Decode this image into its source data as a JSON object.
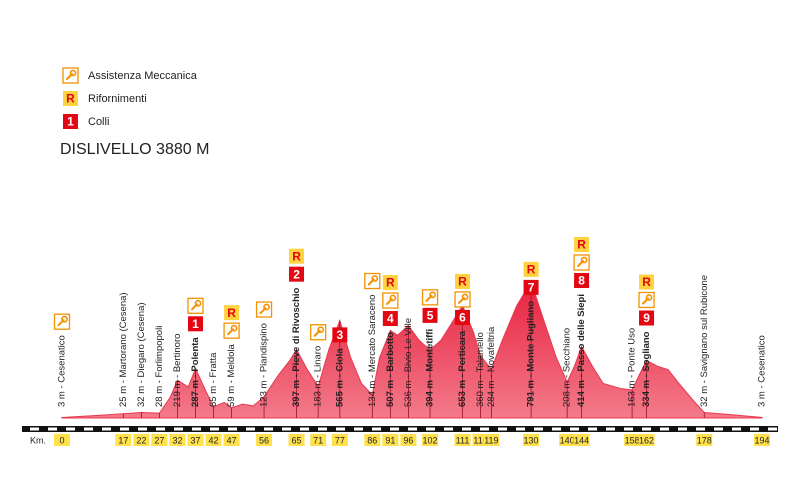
{
  "chart_data": {
    "type": "area",
    "title": "DISLIVELLO 3880 M",
    "color": "#e8384f",
    "x_label": "Km.",
    "legend": {
      "service": "Assistenza Meccanica",
      "feed": {
        "symbol": "R",
        "label": "Rifornimenti"
      },
      "climb": {
        "symbol": "1",
        "label": "Colli"
      }
    },
    "x": [
      0,
      10,
      17,
      22,
      27,
      30,
      32,
      35,
      37,
      40,
      42,
      45,
      47,
      50,
      53,
      56,
      60,
      63,
      65,
      68,
      71,
      74,
      77,
      80,
      83,
      86,
      88,
      91,
      93,
      96,
      99,
      102,
      105,
      108,
      111,
      114,
      116,
      119,
      122,
      126,
      130,
      133,
      137,
      140,
      142,
      144,
      147,
      150,
      155,
      158,
      160,
      162,
      165,
      168,
      171,
      175,
      178,
      185,
      194
    ],
    "values": [
      3,
      15,
      25,
      32,
      28,
      120,
      219,
      180,
      287,
      150,
      65,
      90,
      59,
      80,
      70,
      123,
      250,
      330,
      397,
      280,
      183,
      400,
      565,
      350,
      200,
      134,
      350,
      507,
      480,
      536,
      450,
      394,
      450,
      550,
      653,
      500,
      360,
      284,
      450,
      650,
      791,
      600,
      350,
      208,
      300,
      414,
      300,
      200,
      170,
      163,
      250,
      334,
      300,
      280,
      200,
      100,
      32,
      20,
      3
    ],
    "xlim": [
      0,
      194
    ],
    "ylim": [
      0,
      800
    ],
    "xticks": [
      0,
      17,
      22,
      27,
      32,
      37,
      42,
      47,
      56,
      65,
      71,
      77,
      86,
      91,
      96,
      102,
      111,
      116,
      119,
      130,
      140,
      144,
      158,
      162,
      178,
      194
    ],
    "waypoints": [
      {
        "km": 0,
        "elevation": 3,
        "label": "3 m - Cesenatico",
        "bold": false,
        "service": true
      },
      {
        "km": 17,
        "elevation": 25,
        "label": "25 m - Martorano (Cesena)",
        "bold": false
      },
      {
        "km": 22,
        "elevation": 32,
        "label": "32 m - Diegaro (Cesena)",
        "bold": false
      },
      {
        "km": 27,
        "elevation": 28,
        "label": "28 m - Forlimpopoli",
        "bold": false
      },
      {
        "km": 32,
        "elevation": 219,
        "label": "219 m - Bertinoro",
        "bold": false
      },
      {
        "km": 37,
        "elevation": 287,
        "label": "287 m - Polenta",
        "bold": true,
        "service": true,
        "climb": "1"
      },
      {
        "km": 42,
        "elevation": 65,
        "label": "65 m - Fratta",
        "bold": false
      },
      {
        "km": 47,
        "elevation": 59,
        "label": "59 m - Meldola",
        "bold": false,
        "service": true,
        "feed": "R"
      },
      {
        "km": 56,
        "elevation": 123,
        "label": "123 m - Piandispino",
        "bold": false,
        "service": true
      },
      {
        "km": 65,
        "elevation": 397,
        "label": "397 m - Pieve di Rivoschio",
        "bold": true,
        "feed": "R",
        "climb": "2"
      },
      {
        "km": 71,
        "elevation": 183,
        "label": "183 m - Linaro",
        "bold": false,
        "service": true
      },
      {
        "km": 77,
        "elevation": 565,
        "label": "565 m - Ciola",
        "bold": true,
        "climb": "3"
      },
      {
        "km": 86,
        "elevation": 134,
        "label": "134 m - Mercato Saraceno",
        "bold": false,
        "service": true
      },
      {
        "km": 91,
        "elevation": 507,
        "label": "507 m - Barbotto",
        "bold": true,
        "feed": "R",
        "service": true,
        "climb": "4"
      },
      {
        "km": 96,
        "elevation": 536,
        "label": "536 m - Bivio Le Ville",
        "bold": false
      },
      {
        "km": 102,
        "elevation": 394,
        "label": "394 m - Montetiffi",
        "bold": true,
        "service": true,
        "climb": "5"
      },
      {
        "km": 111,
        "elevation": 653,
        "label": "653 m - Perticara",
        "bold": true,
        "feed": "R",
        "service": true,
        "climb": "6"
      },
      {
        "km": 116,
        "elevation": 360,
        "label": "360 m - Talamello",
        "bold": false
      },
      {
        "km": 119,
        "elevation": 284,
        "label": "284 m - Novafeltria",
        "bold": false
      },
      {
        "km": 130,
        "elevation": 791,
        "label": "791 m - Monte Pugliano",
        "bold": true,
        "feed": "R",
        "climb": "7"
      },
      {
        "km": 140,
        "elevation": 208,
        "label": "208 m - Secchiano",
        "bold": false
      },
      {
        "km": 144,
        "elevation": 414,
        "label": "414 m - Passo delle Siepi",
        "bold": true,
        "feed": "R",
        "service": true,
        "climb": "8"
      },
      {
        "km": 158,
        "elevation": 163,
        "label": "163 m - Ponte Uso",
        "bold": false
      },
      {
        "km": 162,
        "elevation": 334,
        "label": "334 m - Sogliano",
        "bold": true,
        "feed": "R",
        "service": true,
        "climb": "9"
      },
      {
        "km": 178,
        "elevation": 32,
        "label": "32 m - Savignano sul Rubicone",
        "bold": false
      },
      {
        "km": 194,
        "elevation": 3,
        "label": "3 m - Cesenatico",
        "bold": false
      }
    ]
  }
}
